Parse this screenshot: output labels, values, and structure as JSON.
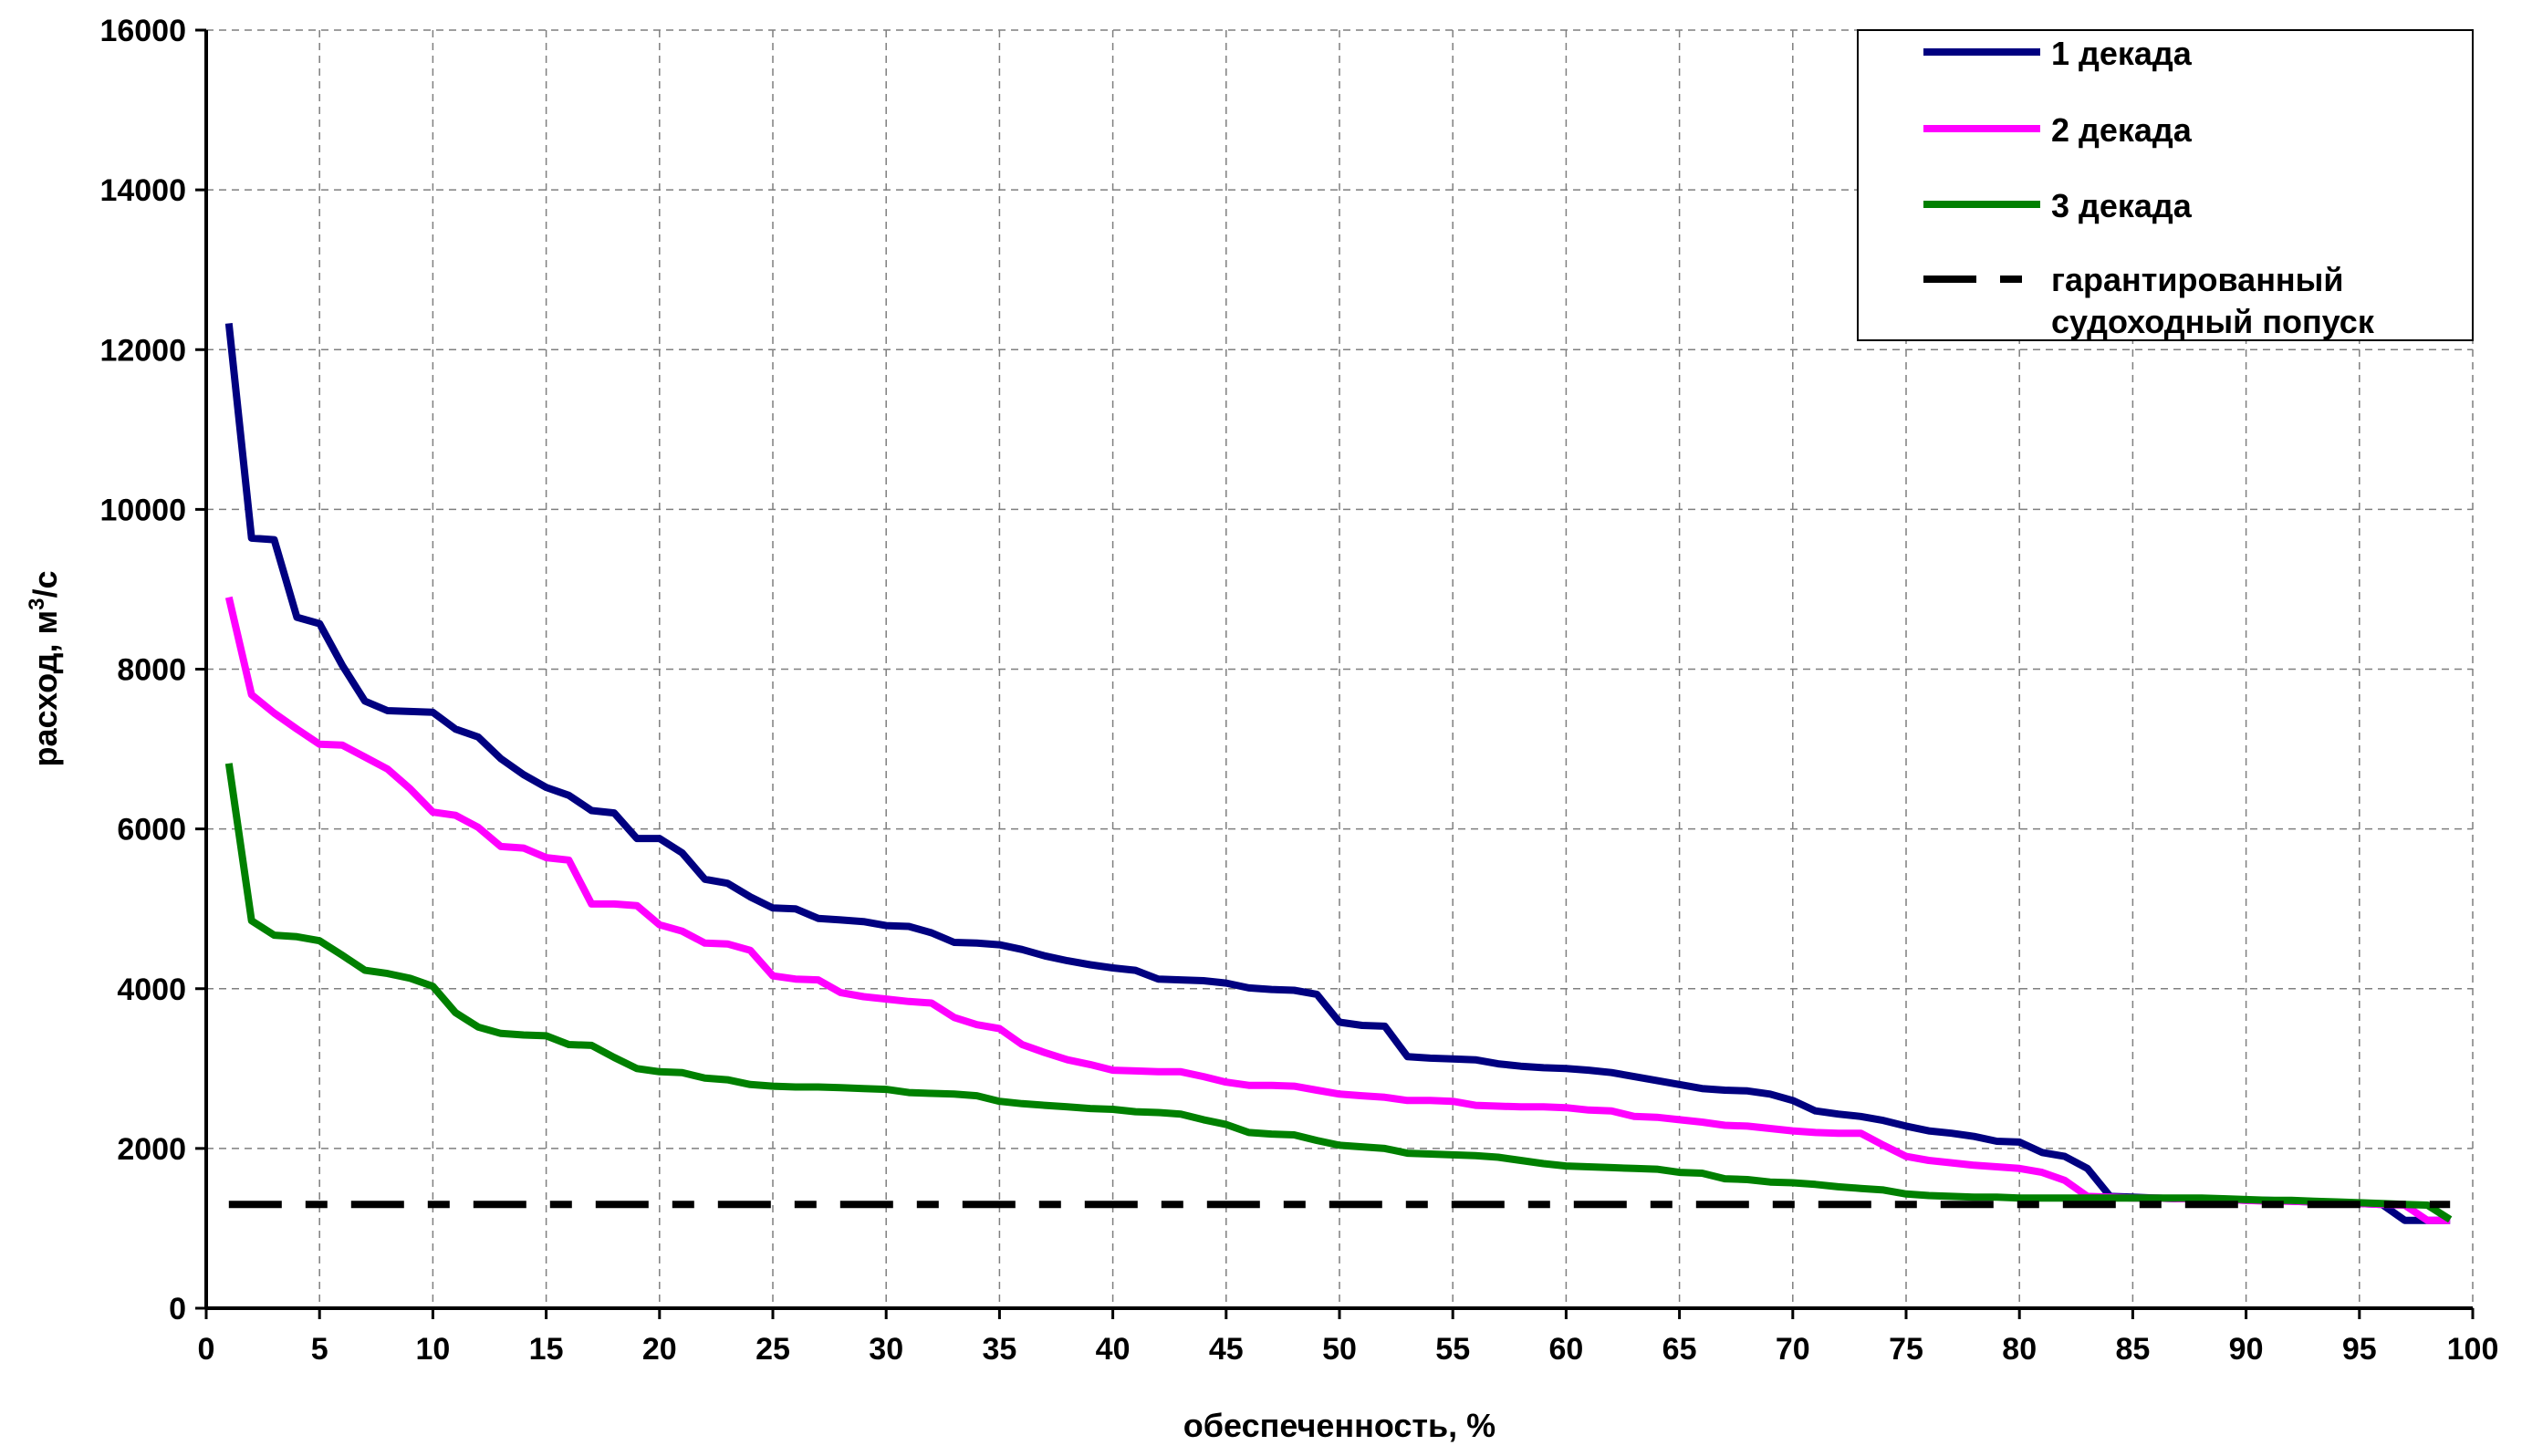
{
  "chart_data": {
    "type": "line",
    "xlabel": "обеспеченность, %",
    "ylabel_main": "расход, м",
    "ylabel_sup": "3",
    "ylabel_tail": "/с",
    "xlim": [
      0,
      100
    ],
    "ylim": [
      0,
      16000
    ],
    "x_ticks": [
      "0",
      "5",
      "10",
      "15",
      "20",
      "25",
      "30",
      "35",
      "40",
      "45",
      "50",
      "55",
      "60",
      "65",
      "70",
      "75",
      "80",
      "85",
      "90",
      "95",
      "100"
    ],
    "y_ticks": [
      "0",
      "2000",
      "4000",
      "6000",
      "8000",
      "10000",
      "12000",
      "14000",
      "16000"
    ],
    "grid": true,
    "legend_position": "top-right",
    "series": [
      {
        "name": "1 декада",
        "color": "#000080",
        "style": "solid",
        "points": [
          [
            1,
            12330
          ],
          [
            2,
            9640
          ],
          [
            3,
            9620
          ],
          [
            4,
            8650
          ],
          [
            5,
            8570
          ],
          [
            6,
            8050
          ],
          [
            7,
            7600
          ],
          [
            8,
            7480
          ],
          [
            9,
            7470
          ],
          [
            10,
            7460
          ],
          [
            11,
            7250
          ],
          [
            12,
            7150
          ],
          [
            13,
            6880
          ],
          [
            14,
            6680
          ],
          [
            15,
            6520
          ],
          [
            16,
            6420
          ],
          [
            17,
            6230
          ],
          [
            18,
            6200
          ],
          [
            19,
            5880
          ],
          [
            20,
            5880
          ],
          [
            21,
            5700
          ],
          [
            22,
            5370
          ],
          [
            23,
            5320
          ],
          [
            24,
            5150
          ],
          [
            25,
            5010
          ],
          [
            26,
            5000
          ],
          [
            27,
            4880
          ],
          [
            28,
            4860
          ],
          [
            29,
            4840
          ],
          [
            30,
            4790
          ],
          [
            31,
            4780
          ],
          [
            32,
            4700
          ],
          [
            33,
            4580
          ],
          [
            34,
            4570
          ],
          [
            35,
            4550
          ],
          [
            36,
            4490
          ],
          [
            37,
            4410
          ],
          [
            38,
            4350
          ],
          [
            39,
            4300
          ],
          [
            40,
            4260
          ],
          [
            41,
            4230
          ],
          [
            42,
            4120
          ],
          [
            43,
            4110
          ],
          [
            44,
            4100
          ],
          [
            45,
            4070
          ],
          [
            46,
            4010
          ],
          [
            47,
            3990
          ],
          [
            48,
            3980
          ],
          [
            49,
            3930
          ],
          [
            50,
            3580
          ],
          [
            51,
            3540
          ],
          [
            52,
            3530
          ],
          [
            53,
            3150
          ],
          [
            54,
            3130
          ],
          [
            55,
            3120
          ],
          [
            56,
            3110
          ],
          [
            57,
            3060
          ],
          [
            58,
            3030
          ],
          [
            59,
            3010
          ],
          [
            60,
            3000
          ],
          [
            61,
            2980
          ],
          [
            62,
            2950
          ],
          [
            63,
            2900
          ],
          [
            64,
            2850
          ],
          [
            65,
            2800
          ],
          [
            66,
            2750
          ],
          [
            67,
            2730
          ],
          [
            68,
            2720
          ],
          [
            69,
            2680
          ],
          [
            70,
            2600
          ],
          [
            71,
            2470
          ],
          [
            72,
            2430
          ],
          [
            73,
            2400
          ],
          [
            74,
            2350
          ],
          [
            75,
            2280
          ],
          [
            76,
            2220
          ],
          [
            77,
            2190
          ],
          [
            78,
            2150
          ],
          [
            79,
            2090
          ],
          [
            80,
            2080
          ],
          [
            81,
            1950
          ],
          [
            82,
            1900
          ],
          [
            83,
            1750
          ],
          [
            84,
            1400
          ],
          [
            85,
            1390
          ],
          [
            86,
            1380
          ],
          [
            87,
            1370
          ],
          [
            88,
            1370
          ],
          [
            89,
            1360
          ],
          [
            90,
            1350
          ],
          [
            91,
            1350
          ],
          [
            92,
            1340
          ],
          [
            93,
            1330
          ],
          [
            94,
            1320
          ],
          [
            95,
            1310
          ],
          [
            96,
            1300
          ],
          [
            97,
            1100
          ],
          [
            98,
            1100
          ],
          [
            99,
            1100
          ]
        ]
      },
      {
        "name": "2 декада",
        "color": "#ff00ff",
        "style": "solid",
        "points": [
          [
            1,
            8900
          ],
          [
            2,
            7680
          ],
          [
            3,
            7450
          ],
          [
            4,
            7250
          ],
          [
            5,
            7060
          ],
          [
            6,
            7050
          ],
          [
            7,
            6900
          ],
          [
            8,
            6750
          ],
          [
            9,
            6500
          ],
          [
            10,
            6210
          ],
          [
            11,
            6170
          ],
          [
            12,
            6020
          ],
          [
            13,
            5780
          ],
          [
            14,
            5760
          ],
          [
            15,
            5640
          ],
          [
            16,
            5610
          ],
          [
            17,
            5060
          ],
          [
            18,
            5060
          ],
          [
            19,
            5040
          ],
          [
            20,
            4800
          ],
          [
            21,
            4720
          ],
          [
            22,
            4570
          ],
          [
            23,
            4560
          ],
          [
            24,
            4480
          ],
          [
            25,
            4160
          ],
          [
            26,
            4120
          ],
          [
            27,
            4110
          ],
          [
            28,
            3950
          ],
          [
            29,
            3900
          ],
          [
            30,
            3870
          ],
          [
            31,
            3840
          ],
          [
            32,
            3820
          ],
          [
            33,
            3640
          ],
          [
            34,
            3550
          ],
          [
            35,
            3500
          ],
          [
            36,
            3300
          ],
          [
            37,
            3200
          ],
          [
            38,
            3110
          ],
          [
            39,
            3050
          ],
          [
            40,
            2980
          ],
          [
            41,
            2970
          ],
          [
            42,
            2960
          ],
          [
            43,
            2960
          ],
          [
            44,
            2900
          ],
          [
            45,
            2830
          ],
          [
            46,
            2790
          ],
          [
            47,
            2790
          ],
          [
            48,
            2780
          ],
          [
            49,
            2730
          ],
          [
            50,
            2680
          ],
          [
            51,
            2660
          ],
          [
            52,
            2640
          ],
          [
            53,
            2600
          ],
          [
            54,
            2600
          ],
          [
            55,
            2590
          ],
          [
            56,
            2540
          ],
          [
            57,
            2530
          ],
          [
            58,
            2520
          ],
          [
            59,
            2520
          ],
          [
            60,
            2510
          ],
          [
            61,
            2480
          ],
          [
            62,
            2470
          ],
          [
            63,
            2400
          ],
          [
            64,
            2390
          ],
          [
            65,
            2360
          ],
          [
            66,
            2330
          ],
          [
            67,
            2290
          ],
          [
            68,
            2280
          ],
          [
            69,
            2250
          ],
          [
            70,
            2220
          ],
          [
            71,
            2200
          ],
          [
            72,
            2190
          ],
          [
            73,
            2190
          ],
          [
            74,
            2040
          ],
          [
            75,
            1900
          ],
          [
            76,
            1850
          ],
          [
            77,
            1820
          ],
          [
            78,
            1790
          ],
          [
            79,
            1770
          ],
          [
            80,
            1750
          ],
          [
            81,
            1700
          ],
          [
            82,
            1600
          ],
          [
            83,
            1400
          ],
          [
            84,
            1390
          ],
          [
            85,
            1380
          ],
          [
            86,
            1380
          ],
          [
            87,
            1370
          ],
          [
            88,
            1370
          ],
          [
            89,
            1360
          ],
          [
            90,
            1350
          ],
          [
            91,
            1340
          ],
          [
            92,
            1340
          ],
          [
            93,
            1330
          ],
          [
            94,
            1320
          ],
          [
            95,
            1310
          ],
          [
            96,
            1300
          ],
          [
            97,
            1290
          ],
          [
            98,
            1100
          ],
          [
            99,
            1100
          ]
        ]
      },
      {
        "name": "3 декада",
        "color": "#008000",
        "style": "solid",
        "points": [
          [
            1,
            6820
          ],
          [
            2,
            4850
          ],
          [
            3,
            4670
          ],
          [
            4,
            4650
          ],
          [
            5,
            4600
          ],
          [
            6,
            4420
          ],
          [
            7,
            4230
          ],
          [
            8,
            4190
          ],
          [
            9,
            4130
          ],
          [
            10,
            4030
          ],
          [
            11,
            3700
          ],
          [
            12,
            3520
          ],
          [
            13,
            3440
          ],
          [
            14,
            3420
          ],
          [
            15,
            3410
          ],
          [
            16,
            3300
          ],
          [
            17,
            3290
          ],
          [
            18,
            3140
          ],
          [
            19,
            3000
          ],
          [
            20,
            2960
          ],
          [
            21,
            2950
          ],
          [
            22,
            2880
          ],
          [
            23,
            2860
          ],
          [
            24,
            2800
          ],
          [
            25,
            2780
          ],
          [
            26,
            2770
          ],
          [
            27,
            2770
          ],
          [
            28,
            2760
          ],
          [
            29,
            2750
          ],
          [
            30,
            2740
          ],
          [
            31,
            2700
          ],
          [
            32,
            2690
          ],
          [
            33,
            2680
          ],
          [
            34,
            2660
          ],
          [
            35,
            2590
          ],
          [
            36,
            2560
          ],
          [
            37,
            2540
          ],
          [
            38,
            2520
          ],
          [
            39,
            2500
          ],
          [
            40,
            2490
          ],
          [
            41,
            2460
          ],
          [
            42,
            2450
          ],
          [
            43,
            2430
          ],
          [
            44,
            2360
          ],
          [
            45,
            2300
          ],
          [
            46,
            2200
          ],
          [
            47,
            2180
          ],
          [
            48,
            2170
          ],
          [
            49,
            2100
          ],
          [
            50,
            2040
          ],
          [
            51,
            2020
          ],
          [
            52,
            2000
          ],
          [
            53,
            1940
          ],
          [
            54,
            1930
          ],
          [
            55,
            1920
          ],
          [
            56,
            1910
          ],
          [
            57,
            1890
          ],
          [
            58,
            1850
          ],
          [
            59,
            1810
          ],
          [
            60,
            1780
          ],
          [
            61,
            1770
          ],
          [
            62,
            1760
          ],
          [
            63,
            1750
          ],
          [
            64,
            1740
          ],
          [
            65,
            1700
          ],
          [
            66,
            1690
          ],
          [
            67,
            1620
          ],
          [
            68,
            1610
          ],
          [
            69,
            1580
          ],
          [
            70,
            1570
          ],
          [
            71,
            1550
          ],
          [
            72,
            1520
          ],
          [
            73,
            1500
          ],
          [
            74,
            1480
          ],
          [
            75,
            1430
          ],
          [
            76,
            1410
          ],
          [
            77,
            1400
          ],
          [
            78,
            1390
          ],
          [
            79,
            1390
          ],
          [
            80,
            1380
          ],
          [
            81,
            1380
          ],
          [
            82,
            1380
          ],
          [
            83,
            1380
          ],
          [
            84,
            1380
          ],
          [
            85,
            1380
          ],
          [
            86,
            1380
          ],
          [
            87,
            1380
          ],
          [
            88,
            1380
          ],
          [
            89,
            1370
          ],
          [
            90,
            1360
          ],
          [
            91,
            1350
          ],
          [
            92,
            1350
          ],
          [
            93,
            1340
          ],
          [
            94,
            1330
          ],
          [
            95,
            1320
          ],
          [
            96,
            1310
          ],
          [
            97,
            1300
          ],
          [
            98,
            1290
          ],
          [
            99,
            1110
          ]
        ]
      },
      {
        "name": "гарантированный судоходный попуск",
        "name_lines": [
          "гарантированный",
          "судоходный попуск"
        ],
        "color": "#000000",
        "style": "dash-dot",
        "points": [
          [
            1,
            1300
          ],
          [
            99,
            1300
          ]
        ]
      }
    ]
  }
}
